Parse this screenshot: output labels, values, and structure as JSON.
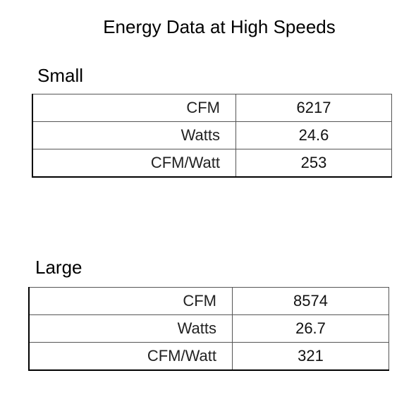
{
  "title": "Energy Data at High Speeds",
  "tables": [
    {
      "heading": "Small",
      "rows": [
        {
          "label": "CFM",
          "value": "6217"
        },
        {
          "label": "Watts",
          "value": "24.6"
        },
        {
          "label": "CFM/Watt",
          "value": "253"
        }
      ]
    },
    {
      "heading": "Large",
      "rows": [
        {
          "label": "CFM",
          "value": "8574"
        },
        {
          "label": "Watts",
          "value": "26.7"
        },
        {
          "label": "CFM/Watt",
          "value": "321"
        }
      ]
    }
  ]
}
